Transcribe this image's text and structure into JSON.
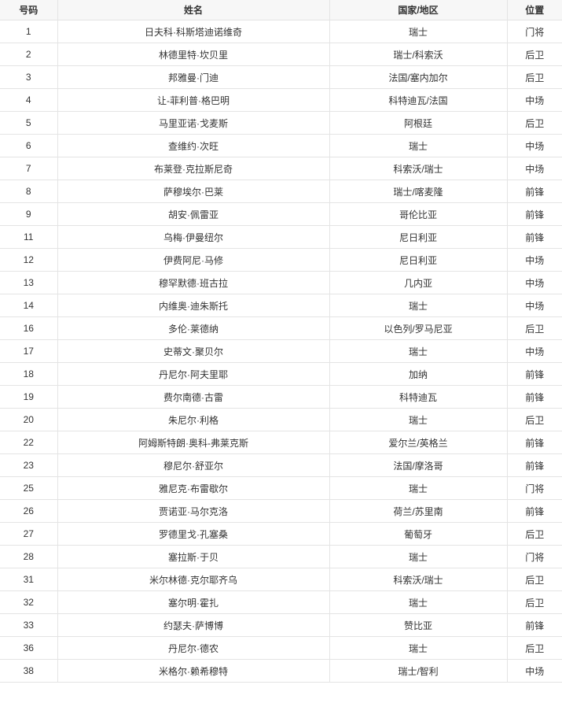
{
  "headers": [
    "号码",
    "姓名",
    "国家/地区",
    "位置"
  ],
  "rows": [
    [
      "1",
      "日夫科·科斯塔迪诺维奇",
      "瑞士",
      "门将"
    ],
    [
      "2",
      "林德里特·坎贝里",
      "瑞士/科索沃",
      "后卫"
    ],
    [
      "3",
      "邦雅曼·门迪",
      "法国/塞内加尔",
      "后卫"
    ],
    [
      "4",
      "让-菲利普·格巴明",
      "科特迪瓦/法国",
      "中场"
    ],
    [
      "5",
      "马里亚诺·戈麦斯",
      "阿根廷",
      "后卫"
    ],
    [
      "6",
      "查维约·次旺",
      "瑞士",
      "中场"
    ],
    [
      "7",
      "布莱登·克拉斯尼奇",
      "科索沃/瑞士",
      "中场"
    ],
    [
      "8",
      "萨穆埃尔·巴莱",
      "瑞士/喀麦隆",
      "前锋"
    ],
    [
      "9",
      "胡安·佩雷亚",
      "哥伦比亚",
      "前锋"
    ],
    [
      "11",
      "乌梅·伊曼纽尔",
      "尼日利亚",
      "前锋"
    ],
    [
      "12",
      "伊费阿尼·马修",
      "尼日利亚",
      "中场"
    ],
    [
      "13",
      "穆罕默德·班古拉",
      "几内亚",
      "中场"
    ],
    [
      "14",
      "内维奥·迪朱斯托",
      "瑞士",
      "中场"
    ],
    [
      "16",
      "多伦·莱德纳",
      "以色列/罗马尼亚",
      "后卫"
    ],
    [
      "17",
      "史蒂文·聚贝尔",
      "瑞士",
      "中场"
    ],
    [
      "18",
      "丹尼尔·阿夫里耶",
      "加纳",
      "前锋"
    ],
    [
      "19",
      "费尔南德·古雷",
      "科特迪瓦",
      "前锋"
    ],
    [
      "20",
      "朱尼尔·利格",
      "瑞士",
      "后卫"
    ],
    [
      "22",
      "阿姆斯特朗·奥科-弗莱克斯",
      "爱尔兰/英格兰",
      "前锋"
    ],
    [
      "23",
      "穆尼尔·舒亚尔",
      "法国/摩洛哥",
      "前锋"
    ],
    [
      "25",
      "雅尼克·布雷歇尔",
      "瑞士",
      "门将"
    ],
    [
      "26",
      "贾诺亚·马尔克洛",
      "荷兰/苏里南",
      "前锋"
    ],
    [
      "27",
      "罗德里戈·孔塞桑",
      "葡萄牙",
      "后卫"
    ],
    [
      "28",
      "塞拉斯·于贝",
      "瑞士",
      "门将"
    ],
    [
      "31",
      "米尔林德·克尔耶齐乌",
      "科索沃/瑞士",
      "后卫"
    ],
    [
      "32",
      "塞尔明·霍扎",
      "瑞士",
      "后卫"
    ],
    [
      "33",
      "约瑟夫·萨博博",
      "赞比亚",
      "前锋"
    ],
    [
      "36",
      "丹尼尔·德农",
      "瑞士",
      "后卫"
    ],
    [
      "38",
      "米格尔·赖希穆特",
      "瑞士/智利",
      "中场"
    ]
  ]
}
